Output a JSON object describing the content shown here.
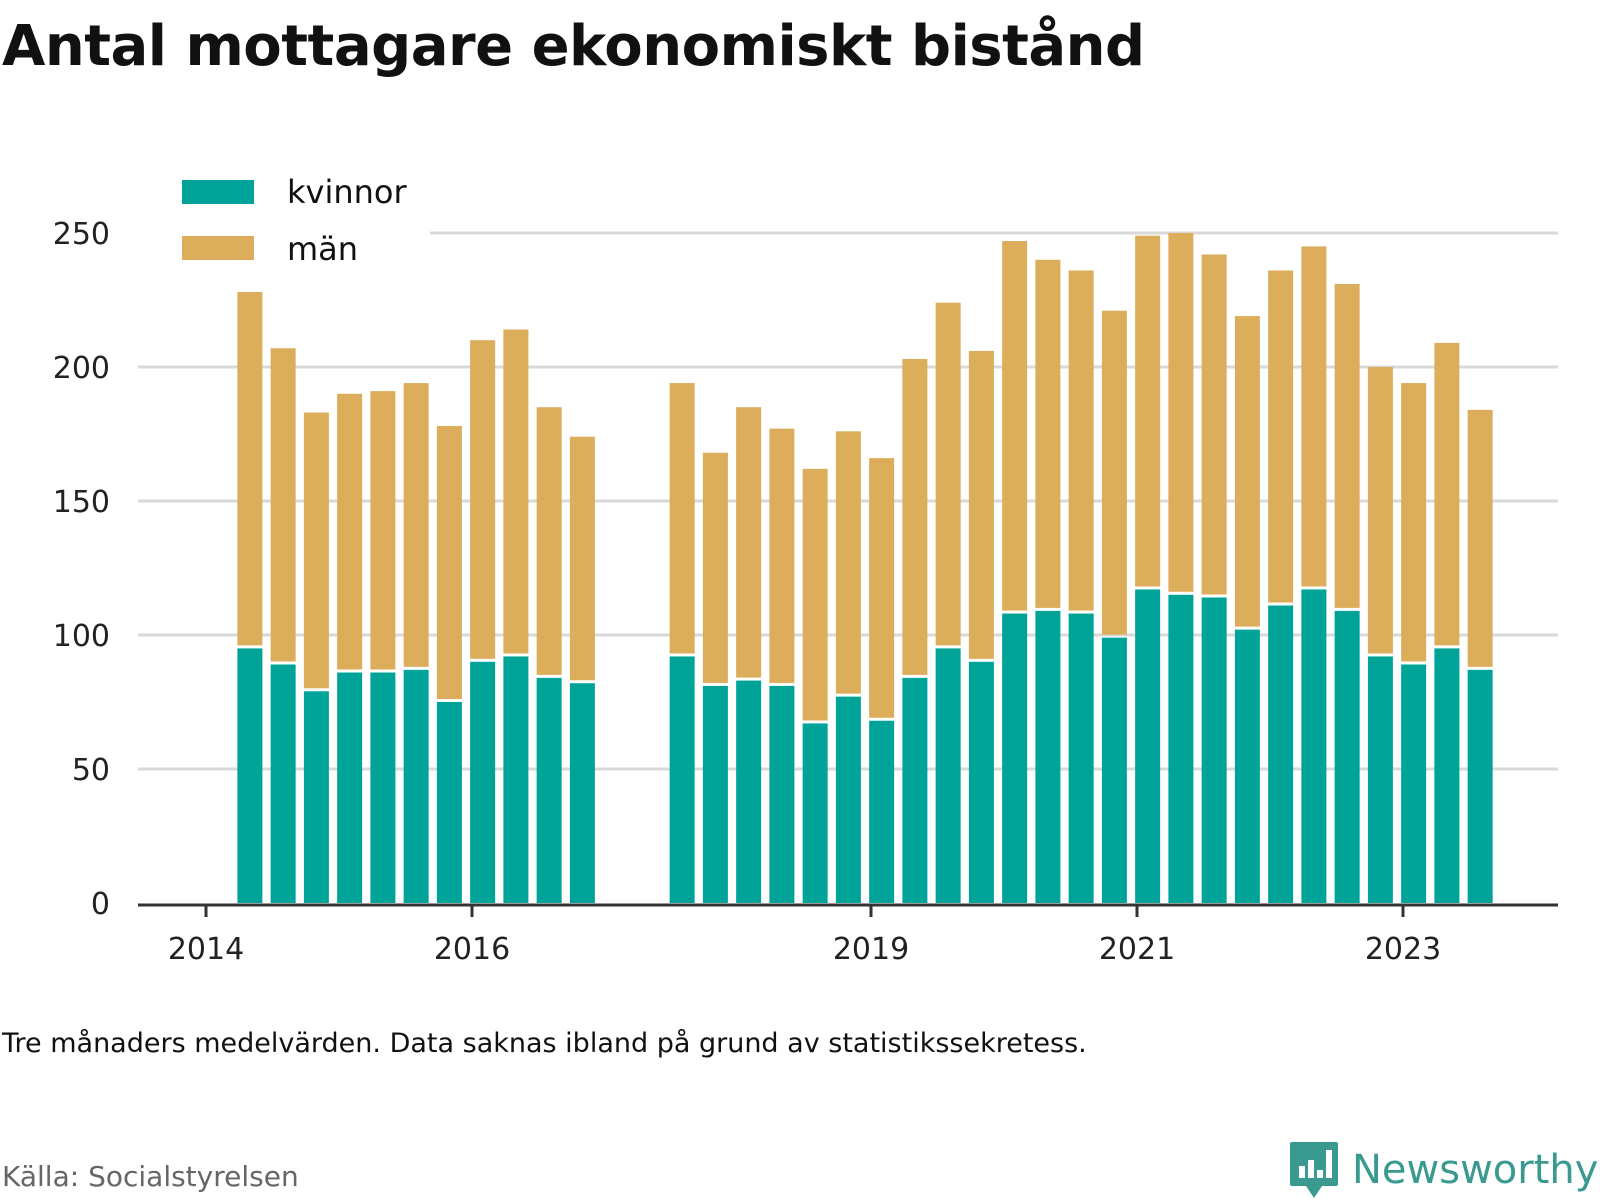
{
  "title": "Antal mottagare ekonomiskt bistånd",
  "note": "Tre månaders medelvärden. Data saknas ibland på grund av statistikssekretess.",
  "source": "Källa: Socialstyrelsen",
  "brand": {
    "name": "Newsworthy",
    "icon": "bar-chart-bubble-icon",
    "color": "#3a9a8f"
  },
  "colors": {
    "kvinnor": "#00a398",
    "man": "#dcad5b",
    "grid": "#d9d9d9",
    "axis": "#333333"
  },
  "chart_data": {
    "type": "bar",
    "stacked": true,
    "title": "Antal mottagare ekonomiskt bistånd",
    "ylim": [
      0,
      250
    ],
    "yticks": [
      0,
      50,
      100,
      150,
      200,
      250
    ],
    "xticks": [
      {
        "label": "2014",
        "t": 2014.0
      },
      {
        "label": "2016",
        "t": 2016.0
      },
      {
        "label": "2019",
        "t": 2019.0
      },
      {
        "label": "2021",
        "t": 2021.0
      },
      {
        "label": "2023",
        "t": 2023.0
      }
    ],
    "grid": true,
    "legend_position": "top-left",
    "x": [
      2014.33,
      2014.58,
      2014.83,
      2015.08,
      2015.33,
      2015.58,
      2015.83,
      2016.08,
      2016.33,
      2016.58,
      2016.83,
      2017.58,
      2017.83,
      2018.08,
      2018.33,
      2018.58,
      2018.83,
      2019.08,
      2019.33,
      2019.58,
      2019.83,
      2020.08,
      2020.33,
      2020.58,
      2020.83,
      2021.08,
      2021.33,
      2021.58,
      2021.83,
      2022.08,
      2022.33,
      2022.58,
      2022.83,
      2023.08,
      2023.33,
      2023.58
    ],
    "series": [
      {
        "name": "kvinnor",
        "color": "#00a398",
        "values": [
          95,
          89,
          79,
          86,
          86,
          87,
          75,
          90,
          92,
          84,
          82,
          92,
          81,
          83,
          81,
          67,
          77,
          68,
          84,
          95,
          90,
          108,
          109,
          108,
          99,
          117,
          115,
          114,
          102,
          111,
          117,
          109,
          92,
          89,
          95,
          87
        ]
      },
      {
        "name": "män",
        "color": "#dcad5b",
        "values": [
          133,
          118,
          104,
          104,
          105,
          107,
          103,
          120,
          122,
          101,
          92,
          102,
          87,
          102,
          96,
          95,
          99,
          98,
          119,
          129,
          116,
          139,
          131,
          128,
          122,
          132,
          135,
          128,
          117,
          125,
          128,
          122,
          108,
          105,
          114,
          97
        ]
      }
    ]
  }
}
